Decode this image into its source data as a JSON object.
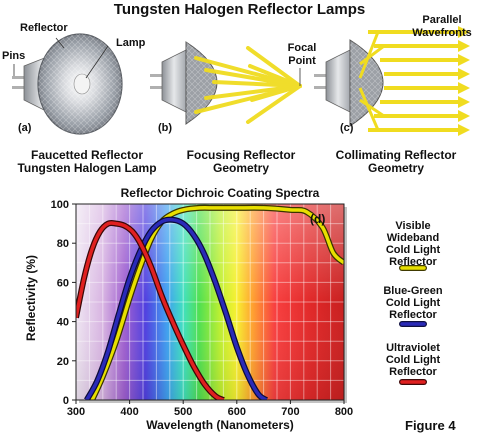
{
  "title": "Tungsten Halogen Reflector Lamps",
  "lamps": {
    "a": {
      "tag": "(a)",
      "callouts": [
        "Reflector",
        "Lamp",
        "Pins"
      ],
      "caption": [
        "Faucetted Reflector",
        "Tungsten Halogen Lamp"
      ]
    },
    "b": {
      "tag": "(b)",
      "callouts": [
        "Focal",
        "Point"
      ],
      "caption": [
        "Focusing Reflector",
        "Geometry"
      ]
    },
    "c": {
      "tag": "(c)",
      "callouts": [
        "Parallel",
        "Wavefronts"
      ],
      "caption": [
        "Collimating Reflector",
        "Geometry"
      ]
    }
  },
  "chart_title": "Reflector Dichroic Coating Spectra",
  "chart_tag": "(d)",
  "figure_label": "Figure 4",
  "chart_data": {
    "type": "line",
    "xlabel": "Wavelength (Nanometers)",
    "ylabel": "Reflectivity (%)",
    "xlim": [
      300,
      800
    ],
    "ylim": [
      0,
      100
    ],
    "xticks": [
      300,
      400,
      500,
      600,
      700,
      800
    ],
    "yticks": [
      0,
      20,
      40,
      60,
      80,
      100
    ],
    "series": [
      {
        "name": "Visible Wideband Cold Light Reflector",
        "color": "#e8e000",
        "x": [
          330,
          350,
          375,
          400,
          420,
          440,
          460,
          480,
          500,
          530,
          560,
          600,
          650,
          700,
          730,
          760,
          780,
          800
        ],
        "y": [
          0,
          12,
          30,
          52,
          68,
          82,
          91,
          95,
          97,
          98,
          98,
          98,
          98,
          97,
          96,
          88,
          75,
          70
        ]
      },
      {
        "name": "Blue-Green Cold Light Reflector",
        "color": "#2a2ab8",
        "x": [
          320,
          340,
          360,
          380,
          400,
          420,
          440,
          460,
          480,
          500,
          520,
          540,
          560,
          580,
          600,
          620,
          640,
          655
        ],
        "y": [
          0,
          10,
          25,
          44,
          62,
          76,
          86,
          91,
          92,
          90,
          84,
          74,
          60,
          44,
          27,
          13,
          3,
          0
        ]
      },
      {
        "name": "Ultraviolet Cold Light Reflector",
        "color": "#e02020",
        "x": [
          300,
          315,
          330,
          345,
          360,
          375,
          390,
          405,
          420,
          440,
          460,
          480,
          500,
          520,
          540,
          560,
          575
        ],
        "y": [
          42,
          62,
          77,
          86,
          90,
          90,
          89,
          86,
          80,
          68,
          53,
          40,
          28,
          17,
          8,
          2,
          0
        ]
      }
    ]
  }
}
